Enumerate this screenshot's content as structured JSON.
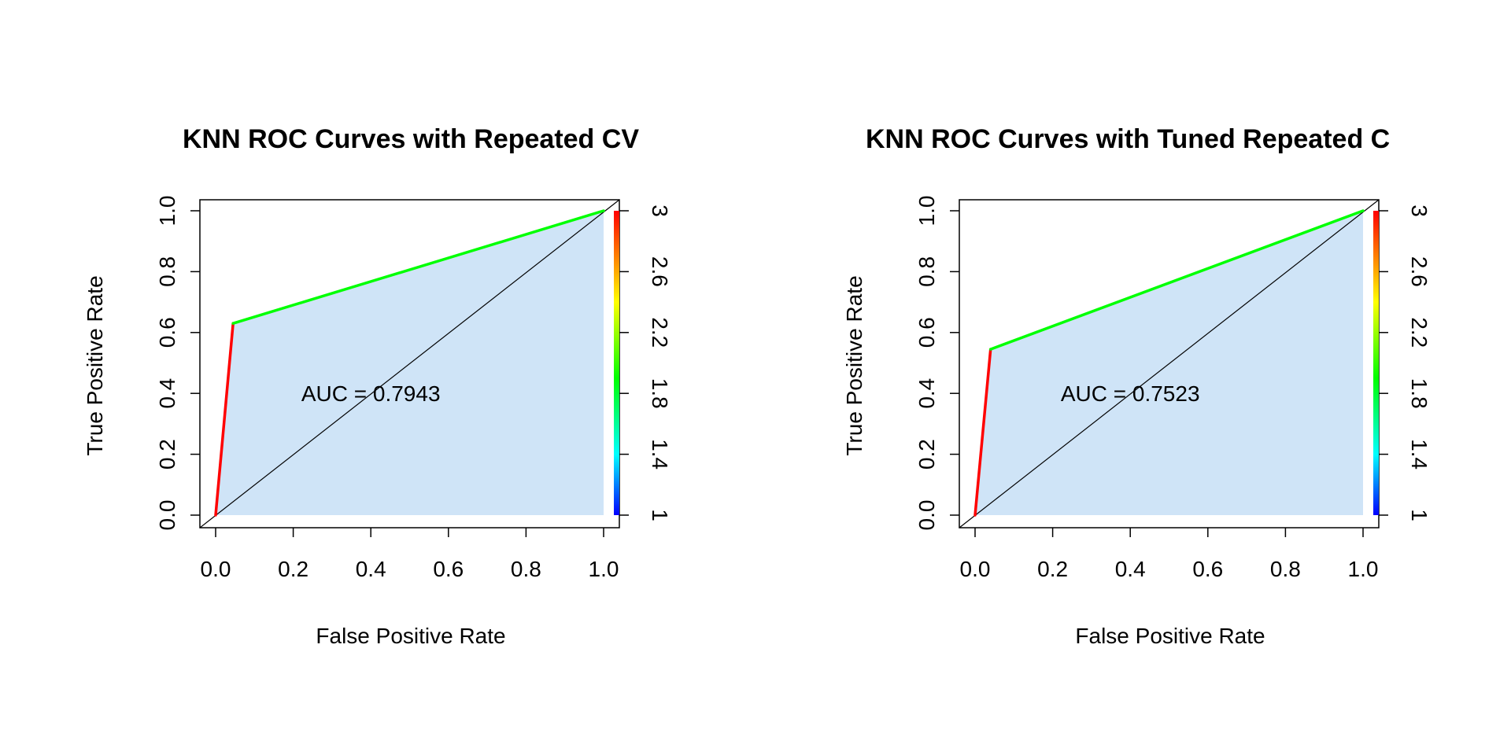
{
  "chart_data": [
    {
      "type": "line",
      "title": "KNN ROC Curves with Repeated CV",
      "xlabel": "False Positive Rate",
      "ylabel": "True Positive Rate",
      "xlim": [
        0,
        1
      ],
      "ylim": [
        0,
        1
      ],
      "x_ticks": [
        "0.0",
        "0.2",
        "0.4",
        "0.6",
        "0.8",
        "1.0"
      ],
      "y_ticks": [
        "0.0",
        "0.2",
        "0.4",
        "0.6",
        "0.8",
        "1.0"
      ],
      "roc_points": [
        [
          0,
          0
        ],
        [
          0.045,
          0.63
        ],
        [
          1,
          1
        ]
      ],
      "diagonal": [
        [
          0,
          0
        ],
        [
          1,
          1
        ]
      ],
      "auc_label": "AUC = 0.7943",
      "auc": 0.7943,
      "colorbar": {
        "ticks": [
          "1",
          "1.4",
          "1.8",
          "2.2",
          "2.6",
          "3"
        ],
        "range": [
          1,
          3
        ],
        "palette": "rainbow"
      },
      "colors": {
        "fill": "#cfe4f7",
        "low": "#ff0000",
        "high": "#00ff00"
      },
      "grid": false
    },
    {
      "type": "line",
      "title": "KNN ROC Curves with Tuned Repeated C",
      "xlabel": "False Positive Rate",
      "ylabel": "True Positive Rate",
      "xlim": [
        0,
        1
      ],
      "ylim": [
        0,
        1
      ],
      "x_ticks": [
        "0.0",
        "0.2",
        "0.4",
        "0.6",
        "0.8",
        "1.0"
      ],
      "y_ticks": [
        "0.0",
        "0.2",
        "0.4",
        "0.6",
        "0.8",
        "1.0"
      ],
      "roc_points": [
        [
          0,
          0
        ],
        [
          0.04,
          0.545
        ],
        [
          1,
          1
        ]
      ],
      "diagonal": [
        [
          0,
          0
        ],
        [
          1,
          1
        ]
      ],
      "auc_label": "AUC = 0.7523",
      "auc": 0.7523,
      "colorbar": {
        "ticks": [
          "1",
          "1.4",
          "1.8",
          "2.2",
          "2.6",
          "3"
        ],
        "range": [
          1,
          3
        ],
        "palette": "rainbow"
      },
      "colors": {
        "fill": "#cfe4f7",
        "low": "#ff0000",
        "high": "#00ff00"
      },
      "grid": false
    }
  ]
}
